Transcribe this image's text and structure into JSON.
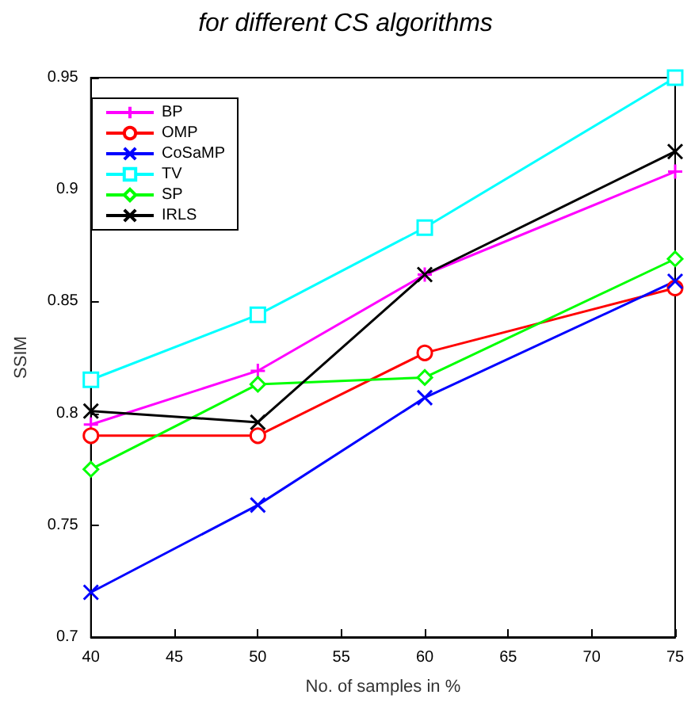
{
  "chart_data": {
    "type": "line",
    "title": "for different CS algorithms",
    "xlabel": "No. of samples in %",
    "ylabel": "SSIM",
    "x": [
      40,
      50,
      60,
      75
    ],
    "xlim": [
      40,
      75
    ],
    "xticks": [
      40,
      45,
      50,
      55,
      60,
      65,
      70,
      75
    ],
    "ylim": [
      0.7,
      0.95
    ],
    "yticks": [
      0.7,
      0.75,
      0.8,
      0.85,
      0.9,
      0.95
    ],
    "grid": false,
    "legend": "top left",
    "series": [
      {
        "name": "BP",
        "color": "#ff00ff",
        "marker": "plus",
        "values": [
          0.795,
          0.819,
          0.862,
          0.908
        ]
      },
      {
        "name": "OMP",
        "color": "#ff0000",
        "marker": "circle",
        "values": [
          0.79,
          0.79,
          0.827,
          0.856
        ]
      },
      {
        "name": "CoSaMP",
        "color": "#0000ff",
        "marker": "cross",
        "values": [
          0.72,
          0.759,
          0.807,
          0.859
        ]
      },
      {
        "name": "TV",
        "color": "#00ffff",
        "marker": "square",
        "values": [
          0.815,
          0.844,
          0.883,
          0.95
        ]
      },
      {
        "name": "SP",
        "color": "#00ff00",
        "marker": "diamond",
        "values": [
          0.775,
          0.813,
          0.816,
          0.869
        ]
      },
      {
        "name": "IRLS",
        "color": "#000000",
        "marker": "cross",
        "values": [
          0.801,
          0.796,
          0.862,
          0.917
        ]
      }
    ]
  }
}
